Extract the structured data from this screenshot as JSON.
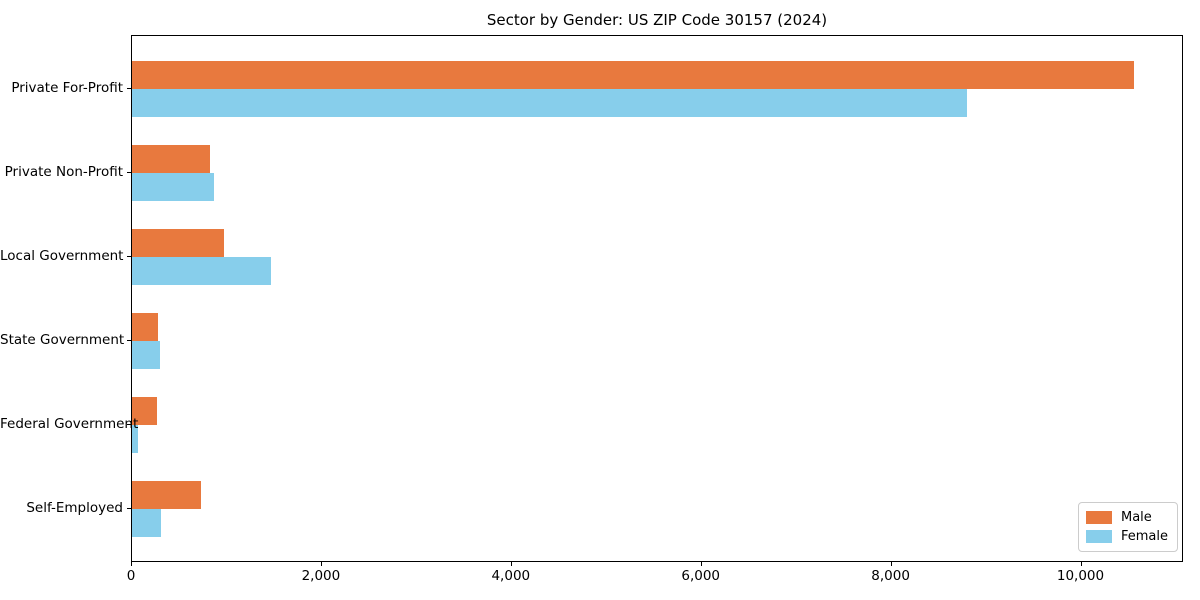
{
  "title": "Sector by Gender: US ZIP Code 30157 (2024)",
  "legend": {
    "position": "lower right",
    "items": [
      {
        "label": "Male",
        "color": "#e8793e"
      },
      {
        "label": "Female",
        "color": "#87ceeb"
      }
    ]
  },
  "chart_data": {
    "type": "bar",
    "orientation": "horizontal",
    "title": "Sector by Gender: US ZIP Code 30157 (2024)",
    "categories": [
      "Private For-Profit",
      "Private Non-Profit",
      "Local Government",
      "State Government",
      "Federal Government",
      "Self-Employed"
    ],
    "series": [
      {
        "name": "Male",
        "color": "#e8793e",
        "values": [
          10550,
          820,
          970,
          275,
          260,
          725
        ]
      },
      {
        "name": "Female",
        "color": "#87ceeb",
        "values": [
          8790,
          865,
          1460,
          295,
          60,
          305
        ]
      }
    ],
    "xlabel": "",
    "ylabel": "",
    "xlim": [
      0,
      11080
    ],
    "x_ticks": {
      "values": [
        0,
        2000,
        4000,
        6000,
        8000,
        10000
      ],
      "labels": [
        "0",
        "2,000",
        "4,000",
        "6,000",
        "8,000",
        "10,000"
      ]
    },
    "grid": false,
    "legend_position": "lower right"
  }
}
